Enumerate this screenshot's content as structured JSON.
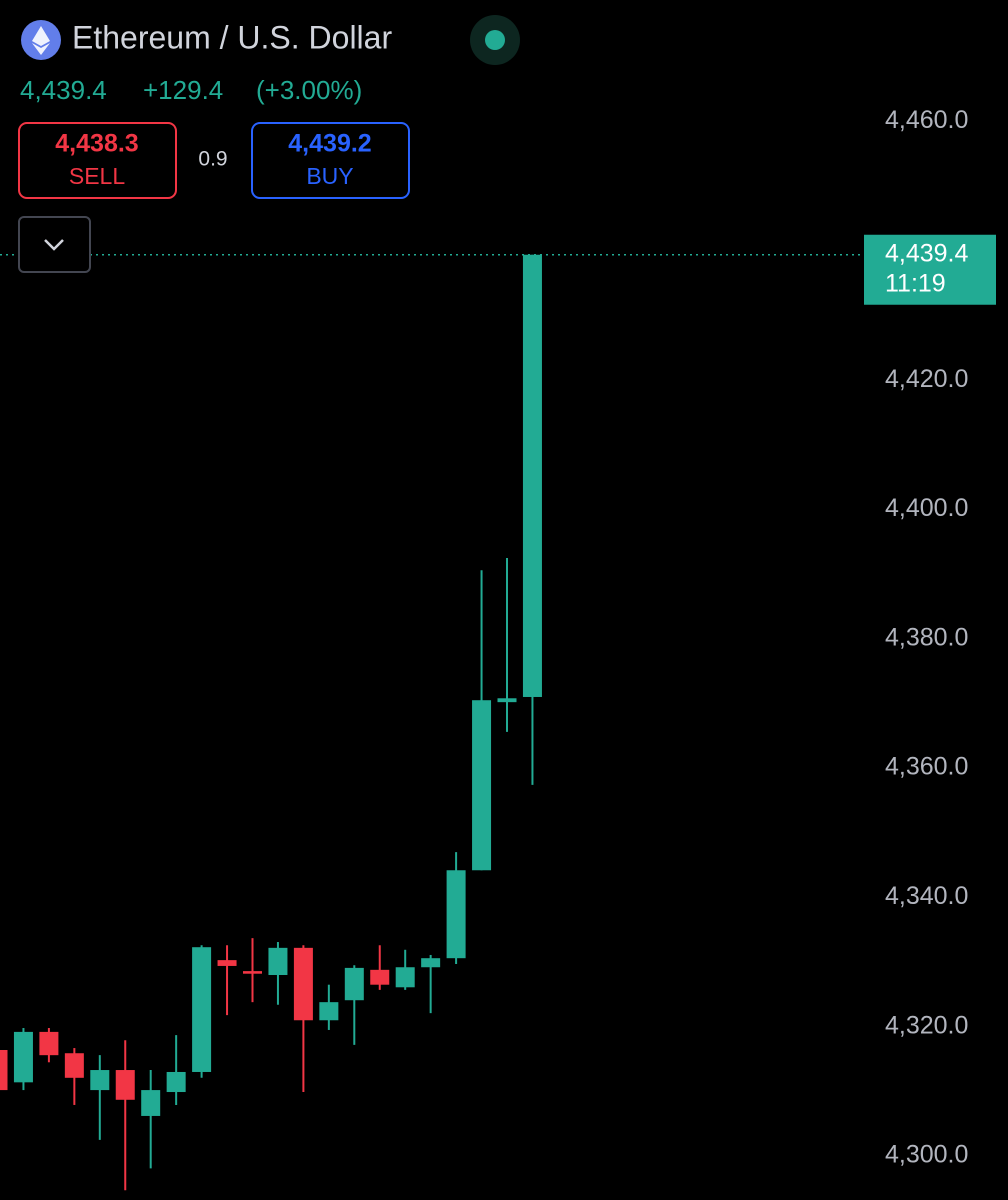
{
  "header": {
    "title": "Ethereum / U.S. Dollar",
    "last": "4,439.4",
    "change": "+129.4",
    "change_pct": "(+3.00%)",
    "sell": {
      "price": "4,438.3",
      "label": "SELL"
    },
    "spread": "0.9",
    "buy": {
      "price": "4,439.2",
      "label": "BUY"
    }
  },
  "chart_data": {
    "type": "candlestick",
    "up_color": "#22ab94",
    "down_color": "#f23645",
    "categories": [
      null,
      null,
      null,
      null,
      null,
      null,
      null,
      null,
      null,
      null,
      null,
      null,
      null,
      null,
      null,
      null,
      null,
      null,
      null,
      null,
      null,
      null
    ],
    "open": [
      4316.4,
      4311.4,
      4319.2,
      4315.9,
      4310.2,
      4313.3,
      4306.2,
      4309.9,
      4313.0,
      4330.3,
      4328.6,
      4328.0,
      4332.2,
      4321.0,
      4324.1,
      4328.8,
      4326.1,
      4329.2,
      4330.6,
      4344.2,
      4370.2,
      4371.0
    ],
    "high": [
      4317.9,
      4319.8,
      4319.8,
      4316.7,
      4315.6,
      4317.9,
      4313.3,
      4318.7,
      4332.6,
      4332.6,
      4333.7,
      4333.1,
      4332.6,
      4326.5,
      4329.5,
      4332.6,
      4331.9,
      4331.1,
      4347.0,
      4390.6,
      4392.5,
      4439.4
    ],
    "low": [
      4308.7,
      4310.2,
      4314.5,
      4307.9,
      4302.5,
      4294.7,
      4298.1,
      4307.9,
      4312.1,
      4321.8,
      4323.8,
      4323.4,
      4309.9,
      4319.5,
      4317.2,
      4325.7,
      4325.7,
      4322.1,
      4329.7,
      4344.2,
      4365.6,
      4357.4
    ],
    "close": [
      4310.2,
      4319.2,
      4315.6,
      4312.1,
      4313.3,
      4308.7,
      4310.2,
      4313.0,
      4332.3,
      4329.4,
      4328.2,
      4332.2,
      4321.0,
      4323.8,
      4329.1,
      4326.5,
      4329.2,
      4330.6,
      4344.2,
      4370.5,
      4370.8,
      4439.4
    ],
    "ylim": [
      4293.2,
      4478.8
    ],
    "yticks": [
      {
        "value": 4300,
        "label": "4,300.0"
      },
      {
        "value": 4320,
        "label": "4,320.0"
      },
      {
        "value": 4340,
        "label": "4,340.0"
      },
      {
        "value": 4360,
        "label": "4,360.0"
      },
      {
        "value": 4380,
        "label": "4,380.0"
      },
      {
        "value": 4400,
        "label": "4,400.0"
      },
      {
        "value": 4420,
        "label": "4,420.0"
      },
      {
        "value": 4460,
        "label": "4,460.0"
      }
    ],
    "last_price": {
      "value": 4439.4,
      "label": "4,439.4"
    },
    "countdown": "11:19"
  }
}
